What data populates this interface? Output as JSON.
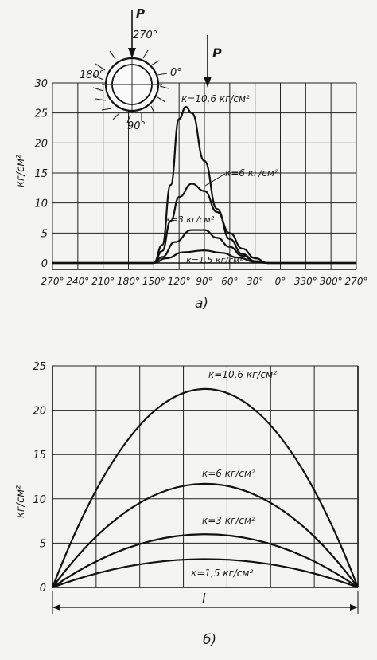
{
  "chart_data": [
    {
      "type": "line",
      "panel_label": "а)",
      "ylabel": "кг/см²",
      "x_categories": [
        "270°",
        "240°",
        "210°",
        "180°",
        "150°",
        "120°",
        "90°",
        "60°",
        "30°",
        "0°",
        "330°",
        "300°",
        "270°"
      ],
      "ylim": [
        0,
        30
      ],
      "yticks": [
        "0",
        "5",
        "10",
        "15",
        "20",
        "25",
        "30"
      ],
      "grid": true,
      "series": [
        {
          "name": "к=10,6 кг/см²",
          "points": [
            [
              150,
              0
            ],
            [
              140,
              3
            ],
            [
              130,
              13
            ],
            [
              120,
              24
            ],
            [
              112,
              26
            ],
            [
              105,
              25
            ],
            [
              90,
              17
            ],
            [
              75,
              9
            ],
            [
              60,
              4
            ],
            [
              45,
              1.5
            ],
            [
              30,
              0.3
            ],
            [
              15,
              0
            ]
          ]
        },
        {
          "name": "к=6 кг/см²",
          "points": [
            [
              150,
              0
            ],
            [
              140,
              2
            ],
            [
              130,
              7
            ],
            [
              120,
              11
            ],
            [
              105,
              13.2
            ],
            [
              90,
              12
            ],
            [
              75,
              8.5
            ],
            [
              60,
              5
            ],
            [
              45,
              2.4
            ],
            [
              30,
              0.8
            ],
            [
              15,
              0
            ]
          ]
        },
        {
          "name": "к=3 кг/см²",
          "points": [
            [
              150,
              0
            ],
            [
              140,
              1
            ],
            [
              125,
              3.5
            ],
            [
              105,
              5.5
            ],
            [
              90,
              5.5
            ],
            [
              75,
              4.2
            ],
            [
              60,
              2.7
            ],
            [
              45,
              1.2
            ],
            [
              30,
              0.3
            ],
            [
              15,
              0
            ]
          ]
        },
        {
          "name": "к=1,5 кг/см²",
          "points": [
            [
              150,
              0
            ],
            [
              135,
              0.8
            ],
            [
              115,
              1.8
            ],
            [
              90,
              2.1
            ],
            [
              70,
              1.7
            ],
            [
              50,
              0.9
            ],
            [
              30,
              0.2
            ],
            [
              15,
              0
            ]
          ]
        }
      ],
      "inset": {
        "labels": {
          "top": "270°",
          "left": "180°",
          "right": "0°",
          "bottom": "90°",
          "force": "P"
        }
      },
      "force_label": "P"
    },
    {
      "type": "line",
      "panel_label": "б)",
      "ylabel": "кг/см²",
      "xlabel": "l",
      "ylim": [
        0,
        25
      ],
      "yticks": [
        "0",
        "5",
        "10",
        "15",
        "20",
        "25"
      ],
      "grid": true,
      "series": [
        {
          "name": "к=10,6 кг/см²",
          "peak": 22.4
        },
        {
          "name": "к=6 кг/см²",
          "peak": 11.7
        },
        {
          "name": "к=3 кг/см²",
          "peak": 6.0
        },
        {
          "name": "к=1,5 кг/см²",
          "peak": 3.2
        }
      ]
    }
  ]
}
